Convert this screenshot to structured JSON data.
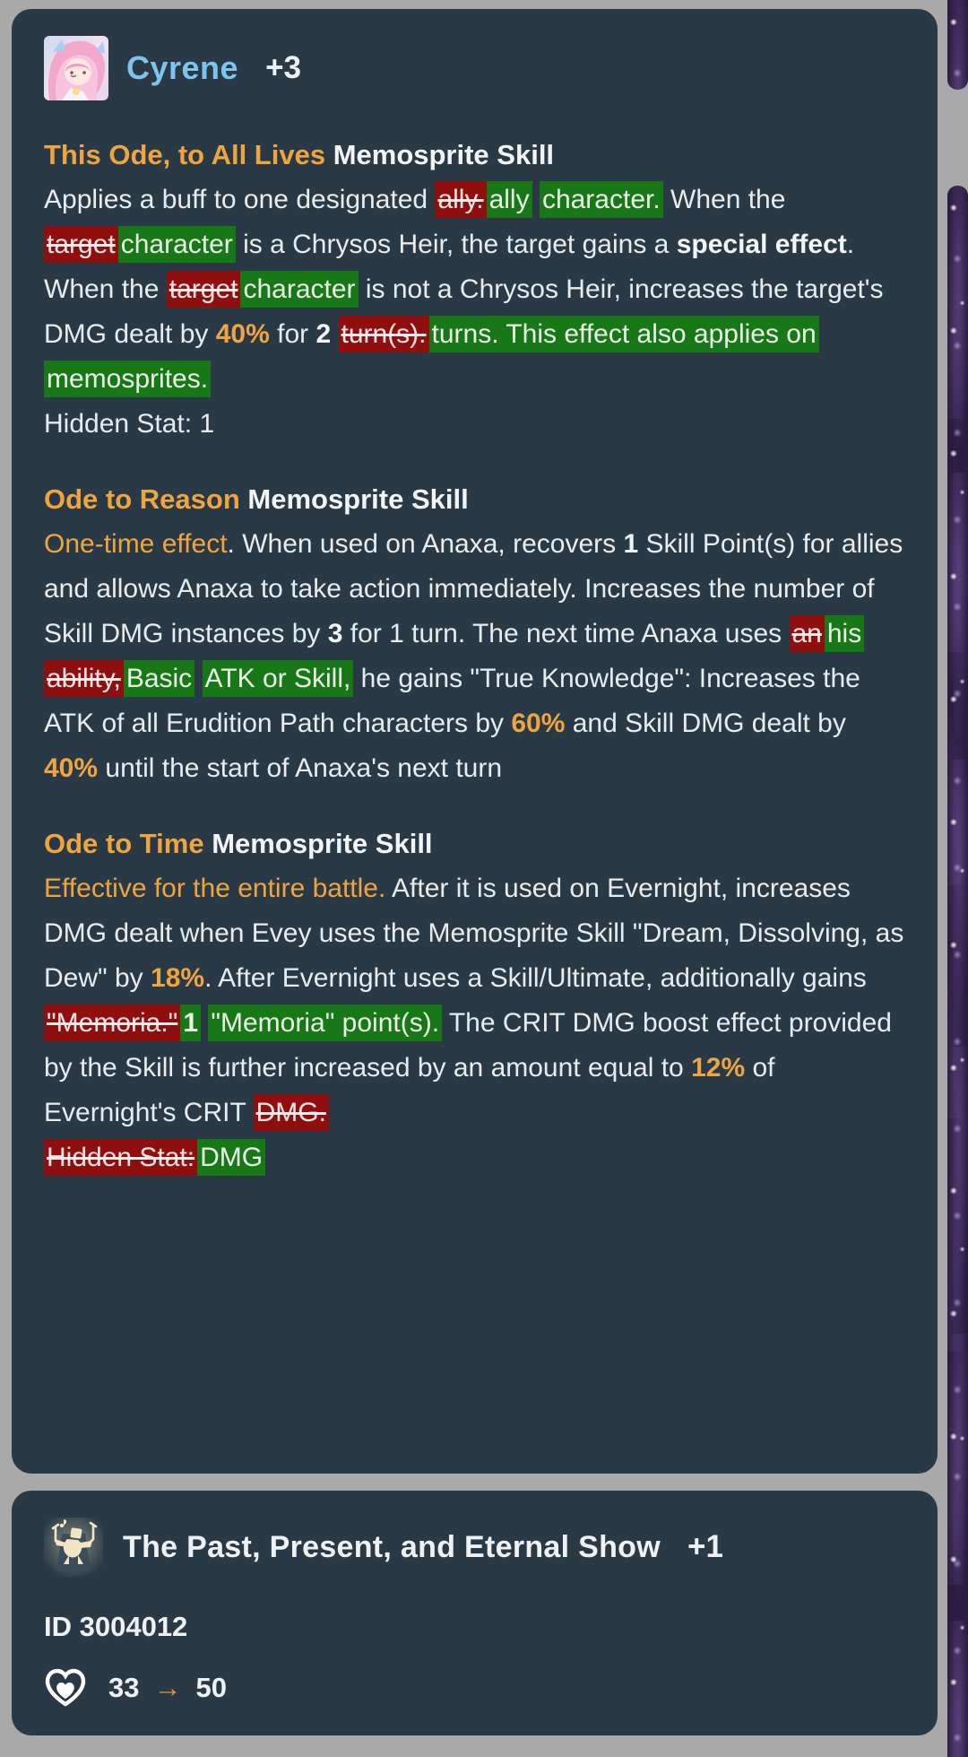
{
  "window": {
    "bg_gray": "#a9a9a9",
    "card_bg": "#2a3946",
    "accent_orange": "#eea540",
    "name_blue": "#7dc4ec",
    "diff_add_bg": "#187818",
    "diff_del_bg": "#8f0f0f"
  },
  "cyrene_card": {
    "name": "Cyrene",
    "change_count": "+3",
    "sections": [
      {
        "heading": [
          {
            "t": "This Ode, to All Lives",
            "s": "ob"
          },
          {
            "t": " Memosprite Skill",
            "s": "b"
          }
        ],
        "paragraphs": [
          [
            {
              "t": "Applies a buff to one designated ",
              "s": "n"
            },
            {
              "t": "ally.",
              "s": "del"
            },
            {
              "t": "ally",
              "s": "ins"
            },
            {
              "t": " ",
              "s": "n"
            },
            {
              "t": "character.",
              "s": "ins"
            },
            {
              "t": " When the ",
              "s": "n"
            },
            {
              "t": "target",
              "s": "del"
            },
            {
              "t": "character",
              "s": "ins"
            },
            {
              "t": " is a Chrysos Heir, the target gains a ",
              "s": "n"
            },
            {
              "t": "special effect",
              "s": "b"
            },
            {
              "t": ". When the ",
              "s": "n"
            },
            {
              "t": "target",
              "s": "del"
            },
            {
              "t": "character",
              "s": "ins"
            },
            {
              "t": " is not a Chrysos Heir, increases the target's DMG dealt by ",
              "s": "n"
            },
            {
              "t": "40%",
              "s": "ob"
            },
            {
              "t": " for ",
              "s": "n"
            },
            {
              "t": "2",
              "s": "b"
            },
            {
              "t": " ",
              "s": "n"
            },
            {
              "t": "turn(s).",
              "s": "del"
            },
            {
              "t": "turns. This effect also applies on memosprites.",
              "s": "ins"
            }
          ],
          [
            {
              "t": "Hidden Stat: 1",
              "s": "n"
            }
          ]
        ]
      },
      {
        "heading": [
          {
            "t": "Ode to Reason",
            "s": "ob"
          },
          {
            "t": " Memosprite Skill",
            "s": "b"
          }
        ],
        "paragraphs": [
          [
            {
              "t": "One-time effect",
              "s": "o"
            },
            {
              "t": ". When used on Anaxa, recovers ",
              "s": "n"
            },
            {
              "t": "1",
              "s": "b"
            },
            {
              "t": " Skill Point(s) for allies and allows Anaxa to take action immediately. Increases the number of Skill DMG instances by ",
              "s": "n"
            },
            {
              "t": "3",
              "s": "b"
            },
            {
              "t": " for 1 turn. The next time Anaxa uses ",
              "s": "n"
            },
            {
              "t": "an",
              "s": "del"
            },
            {
              "t": "his",
              "s": "ins"
            },
            {
              "t": " ",
              "s": "n"
            },
            {
              "t": "ability,",
              "s": "del"
            },
            {
              "t": "Basic",
              "s": "ins"
            },
            {
              "t": " ",
              "s": "n"
            },
            {
              "t": "ATK or Skill,",
              "s": "ins"
            },
            {
              "t": " he gains \"True Knowledge\": Increases the ATK of all Erudition Path characters by ",
              "s": "n"
            },
            {
              "t": "60%",
              "s": "ob"
            },
            {
              "t": " and Skill DMG dealt by ",
              "s": "n"
            },
            {
              "t": "40%",
              "s": "ob"
            },
            {
              "t": " until the start of Anaxa's next turn",
              "s": "n"
            }
          ]
        ]
      },
      {
        "heading": [
          {
            "t": "Ode to Time",
            "s": "ob"
          },
          {
            "t": " Memosprite Skill",
            "s": "b"
          }
        ],
        "paragraphs": [
          [
            {
              "t": "Effective for the entire battle.",
              "s": "o"
            },
            {
              "t": " After it is used on Evernight, increases DMG dealt when Evey uses the Memosprite Skill \"Dream, Dissolving, as Dew\" by ",
              "s": "n"
            },
            {
              "t": "18%",
              "s": "ob"
            },
            {
              "t": ". After Evernight uses a Skill/Ultimate, additionally gains ",
              "s": "n"
            },
            {
              "t": "\"Memoria.\"",
              "s": "del"
            },
            {
              "t": "1",
              "s": "insb"
            },
            {
              "t": " ",
              "s": "n"
            },
            {
              "t": "\"Memoria\" point(s).",
              "s": "ins"
            },
            {
              "t": " The CRIT DMG boost effect provided by the Skill is further increased by an amount equal to ",
              "s": "n"
            },
            {
              "t": "12%",
              "s": "ob"
            },
            {
              "t": " of Evernight's CRIT ",
              "s": "n"
            },
            {
              "t": "DMG.",
              "s": "del"
            }
          ],
          [
            {
              "t": "Hidden Stat:",
              "s": "del"
            },
            {
              "t": "DMG",
              "s": "ins"
            }
          ]
        ]
      }
    ]
  },
  "lightcone_card": {
    "title": "The Past, Present, and Eternal Show",
    "change_count": "+1",
    "id_text": "ID 3004012",
    "favor": {
      "from": "33",
      "arrow": "→",
      "to": "50"
    }
  }
}
